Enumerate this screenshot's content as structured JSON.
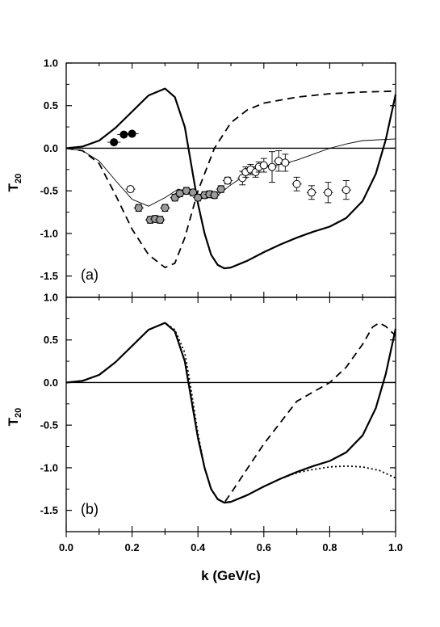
{
  "chart_data": [
    {
      "type": "line",
      "panel_label": "(a)",
      "ylabel": "T",
      "ylabel_sub": "20",
      "xlim": [
        0.0,
        1.0
      ],
      "ylim": [
        -1.75,
        1.0
      ],
      "ytick_labels": [
        "1.0",
        "0.5",
        "0.0",
        "-0.5",
        "-1.0",
        "-1.5"
      ],
      "yticks": [
        1.0,
        0.5,
        0.0,
        -0.5,
        -1.0,
        -1.5
      ],
      "zero_line": true,
      "series": [
        {
          "style": "solid-thick",
          "x": [
            0.0,
            0.05,
            0.1,
            0.15,
            0.2,
            0.25,
            0.3,
            0.33,
            0.36,
            0.38,
            0.4,
            0.42,
            0.44,
            0.46,
            0.48,
            0.5,
            0.55,
            0.6,
            0.65,
            0.7,
            0.75,
            0.8,
            0.85,
            0.9,
            0.94,
            0.97,
            1.0
          ],
          "y": [
            0.0,
            0.02,
            0.09,
            0.24,
            0.43,
            0.62,
            0.7,
            0.6,
            0.25,
            -0.2,
            -0.65,
            -1.0,
            -1.25,
            -1.37,
            -1.41,
            -1.4,
            -1.32,
            -1.22,
            -1.13,
            -1.05,
            -0.98,
            -0.92,
            -0.82,
            -0.62,
            -0.3,
            0.1,
            0.63
          ]
        },
        {
          "style": "dashed",
          "x": [
            0.0,
            0.05,
            0.1,
            0.15,
            0.2,
            0.25,
            0.3,
            0.33,
            0.36,
            0.4,
            0.45,
            0.5,
            0.55,
            0.6,
            0.7,
            0.8,
            0.9,
            1.0
          ],
          "y": [
            0.0,
            -0.03,
            -0.18,
            -0.55,
            -0.95,
            -1.25,
            -1.4,
            -1.35,
            -1.05,
            -0.5,
            0.0,
            0.3,
            0.45,
            0.53,
            0.6,
            0.64,
            0.66,
            0.67
          ]
        },
        {
          "style": "solid-thin",
          "x": [
            0.0,
            0.05,
            0.1,
            0.15,
            0.2,
            0.25,
            0.3,
            0.34,
            0.38,
            0.42,
            0.46,
            0.5,
            0.55,
            0.6,
            0.65,
            0.7,
            0.75,
            0.8,
            0.85,
            0.9,
            1.0
          ],
          "y": [
            0.0,
            -0.03,
            -0.15,
            -0.38,
            -0.6,
            -0.68,
            -0.58,
            -0.48,
            -0.52,
            -0.57,
            -0.55,
            -0.43,
            -0.3,
            -0.22,
            -0.19,
            -0.14,
            -0.07,
            0.0,
            0.05,
            0.09,
            0.11
          ]
        },
        {
          "style": "markers-filled",
          "x": [
            0.145,
            0.175,
            0.2
          ],
          "y": [
            0.07,
            0.16,
            0.17
          ],
          "xerr": [
            0.02,
            0.02,
            0.02
          ],
          "yerr": [
            0.02,
            0.02,
            0.02
          ]
        },
        {
          "style": "markers-gray",
          "x": [
            0.22,
            0.255,
            0.27,
            0.285,
            0.3,
            0.33,
            0.345,
            0.365,
            0.385,
            0.4,
            0.42,
            0.435,
            0.45,
            0.47
          ],
          "y": [
            -0.7,
            -0.84,
            -0.83,
            -0.84,
            -0.7,
            -0.58,
            -0.53,
            -0.5,
            -0.52,
            -0.58,
            -0.55,
            -0.54,
            -0.55,
            -0.48
          ],
          "xerr": [
            0.015,
            0.015,
            0.015,
            0.015,
            0.015,
            0.015,
            0.015,
            0.015,
            0.015,
            0.015,
            0.015,
            0.015,
            0.015,
            0.015
          ],
          "yerr": [
            0.04,
            0.04,
            0.04,
            0.04,
            0.04,
            0.04,
            0.04,
            0.04,
            0.04,
            0.04,
            0.04,
            0.04,
            0.04,
            0.04
          ]
        },
        {
          "style": "markers-open",
          "x": [
            0.195,
            0.49,
            0.535,
            0.545,
            0.56,
            0.575,
            0.585,
            0.6,
            0.625,
            0.645,
            0.665,
            0.7,
            0.745,
            0.795,
            0.85
          ],
          "y": [
            -0.48,
            -0.38,
            -0.35,
            -0.28,
            -0.25,
            -0.28,
            -0.22,
            -0.2,
            -0.22,
            -0.15,
            -0.17,
            -0.42,
            -0.52,
            -0.52,
            -0.49
          ],
          "xerr": [
            0.015,
            0.015,
            0.015,
            0.015,
            0.015,
            0.015,
            0.015,
            0.015,
            0.015,
            0.015,
            0.015,
            0.015,
            0.015,
            0.015,
            0.015
          ],
          "yerr": [
            0.03,
            0.04,
            0.08,
            0.06,
            0.06,
            0.06,
            0.06,
            0.08,
            0.18,
            0.12,
            0.1,
            0.08,
            0.08,
            0.12,
            0.11
          ]
        }
      ]
    },
    {
      "type": "line",
      "panel_label": "(b)",
      "ylabel": "T",
      "ylabel_sub": "20",
      "xlabel": "k (GeV/c)",
      "xlim": [
        0.0,
        1.0
      ],
      "ylim": [
        -1.75,
        1.0
      ],
      "xtick_labels": [
        "0.0",
        "0.2",
        "0.4",
        "0.6",
        "0.8",
        "1.0"
      ],
      "xticks": [
        0.0,
        0.2,
        0.4,
        0.6,
        0.8,
        1.0
      ],
      "ytick_labels": [
        "1.0",
        "0.5",
        "0.0",
        "-0.5",
        "-1.0",
        "-1.5"
      ],
      "yticks": [
        1.0,
        0.5,
        0.0,
        -0.5,
        -1.0,
        -1.5
      ],
      "zero_line": true,
      "series": [
        {
          "style": "solid-thick",
          "x": [
            0.0,
            0.05,
            0.1,
            0.15,
            0.2,
            0.25,
            0.3,
            0.33,
            0.36,
            0.38,
            0.4,
            0.42,
            0.44,
            0.46,
            0.48,
            0.5,
            0.55,
            0.6,
            0.65,
            0.7,
            0.75,
            0.8,
            0.85,
            0.9,
            0.94,
            0.97,
            1.0
          ],
          "y": [
            0.0,
            0.02,
            0.09,
            0.24,
            0.43,
            0.62,
            0.7,
            0.6,
            0.25,
            -0.2,
            -0.65,
            -1.0,
            -1.25,
            -1.37,
            -1.41,
            -1.4,
            -1.32,
            -1.22,
            -1.13,
            -1.05,
            -0.98,
            -0.92,
            -0.82,
            -0.62,
            -0.3,
            0.1,
            0.63
          ]
        },
        {
          "style": "dashed",
          "x": [
            0.0,
            0.05,
            0.1,
            0.15,
            0.2,
            0.25,
            0.3,
            0.33,
            0.36,
            0.38,
            0.4,
            0.42,
            0.44,
            0.46,
            0.48,
            0.5,
            0.6,
            0.7,
            0.8,
            0.85,
            0.9,
            0.93,
            0.95,
            0.97,
            1.0
          ],
          "y": [
            0.0,
            0.02,
            0.09,
            0.24,
            0.43,
            0.62,
            0.7,
            0.6,
            0.25,
            -0.2,
            -0.65,
            -1.0,
            -1.25,
            -1.37,
            -1.41,
            -1.3,
            -0.72,
            -0.22,
            0.0,
            0.18,
            0.45,
            0.65,
            0.7,
            0.66,
            0.55
          ]
        },
        {
          "style": "dotted",
          "x": [
            0.0,
            0.05,
            0.1,
            0.15,
            0.2,
            0.25,
            0.3,
            0.33,
            0.36,
            0.38,
            0.4,
            0.42,
            0.44,
            0.46,
            0.48,
            0.5,
            0.55,
            0.6,
            0.65,
            0.7,
            0.75,
            0.8,
            0.85,
            0.9,
            0.95,
            1.0
          ],
          "y": [
            0.0,
            0.02,
            0.09,
            0.24,
            0.43,
            0.62,
            0.7,
            0.62,
            0.35,
            -0.1,
            -0.6,
            -1.0,
            -1.25,
            -1.37,
            -1.41,
            -1.4,
            -1.32,
            -1.22,
            -1.13,
            -1.06,
            -1.02,
            -0.99,
            -0.98,
            -0.99,
            -1.03,
            -1.12
          ]
        }
      ]
    }
  ]
}
